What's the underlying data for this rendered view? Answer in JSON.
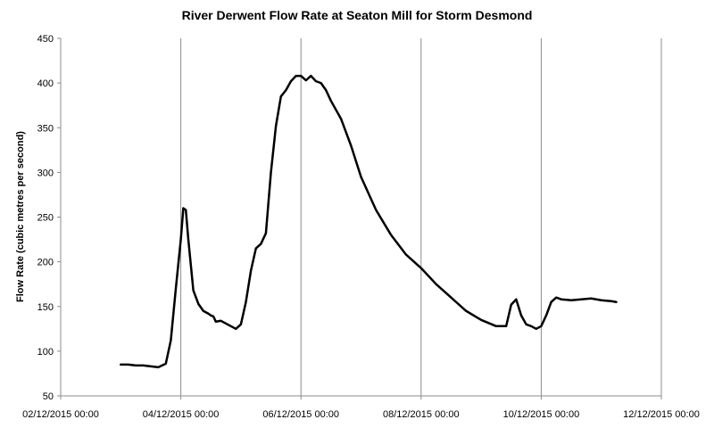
{
  "chart_data": {
    "type": "line",
    "title": "River Derwent Flow Rate at Seaton Mill for Storm Desmond",
    "xlabel": "",
    "ylabel": "Flow Rate (cubic metres per second)",
    "ylim": [
      50,
      450
    ],
    "yticks": [
      50,
      100,
      150,
      200,
      250,
      300,
      350,
      400,
      450
    ],
    "xlim": [
      "02/12/2015 00:00",
      "12/12/2015 00:00"
    ],
    "xtick_labels": [
      "02/12/2015 00:00",
      "04/12/2015 00:00",
      "06/12/2015 00:00",
      "08/12/2015 00:00",
      "10/12/2015 00:00",
      "12/12/2015 00:00"
    ],
    "grid": {
      "vertical": true,
      "horizontal": false
    },
    "legend": "none",
    "line_color": "#000000",
    "series": [
      {
        "x": [
          "03/12/2015 00:00",
          "03/12/2015 03:00",
          "03/12/2015 06:00",
          "03/12/2015 09:00",
          "03/12/2015 12:00",
          "03/12/2015 15:00",
          "03/12/2015 18:00",
          "03/12/2015 20:00",
          "03/12/2015 22:00",
          "04/12/2015 00:00",
          "04/12/2015 01:00",
          "04/12/2015 02:00",
          "04/12/2015 03:00",
          "04/12/2015 05:00",
          "04/12/2015 07:00",
          "04/12/2015 09:00",
          "04/12/2015 11:00",
          "04/12/2015 12:00",
          "04/12/2015 13:00",
          "04/12/2015 14:00",
          "04/12/2015 16:00",
          "04/12/2015 18:00",
          "04/12/2015 20:00",
          "04/12/2015 22:00",
          "05/12/2015 00:00",
          "05/12/2015 02:00",
          "05/12/2015 04:00",
          "05/12/2015 06:00",
          "05/12/2015 08:00",
          "05/12/2015 10:00",
          "05/12/2015 12:00",
          "05/12/2015 14:00",
          "05/12/2015 16:00",
          "05/12/2015 18:00",
          "05/12/2015 20:00",
          "05/12/2015 22:00",
          "06/12/2015 00:00",
          "06/12/2015 02:00",
          "06/12/2015 04:00",
          "06/12/2015 06:00",
          "06/12/2015 08:00",
          "06/12/2015 10:00",
          "06/12/2015 12:00",
          "06/12/2015 16:00",
          "06/12/2015 20:00",
          "07/12/2015 00:00",
          "07/12/2015 06:00",
          "07/12/2015 12:00",
          "07/12/2015 18:00",
          "08/12/2015 00:00",
          "08/12/2015 06:00",
          "08/12/2015 12:00",
          "08/12/2015 18:00",
          "09/12/2015 00:00",
          "09/12/2015 06:00",
          "09/12/2015 10:00",
          "09/12/2015 12:00",
          "09/12/2015 14:00",
          "09/12/2015 16:00",
          "09/12/2015 18:00",
          "09/12/2015 20:00",
          "09/12/2015 22:00",
          "10/12/2015 00:00",
          "10/12/2015 02:00",
          "10/12/2015 04:00",
          "10/12/2015 06:00",
          "10/12/2015 08:00",
          "10/12/2015 12:00",
          "10/12/2015 16:00",
          "10/12/2015 20:00",
          "11/12/2015 00:00",
          "11/12/2015 04:00",
          "11/12/2015 06:00"
        ],
        "y": [
          85,
          85,
          84,
          84,
          83,
          82,
          86,
          112,
          170,
          225,
          260,
          258,
          225,
          168,
          153,
          145,
          142,
          140,
          139,
          133,
          134,
          131,
          128,
          125,
          130,
          155,
          190,
          215,
          220,
          232,
          300,
          352,
          385,
          392,
          402,
          408,
          408,
          403,
          408,
          402,
          400,
          392,
          380,
          360,
          330,
          295,
          258,
          230,
          208,
          193,
          175,
          160,
          145,
          135,
          128,
          128,
          152,
          158,
          140,
          130,
          128,
          125,
          128,
          140,
          155,
          160,
          158,
          157,
          158,
          159,
          157,
          156,
          155
        ]
      }
    ]
  }
}
